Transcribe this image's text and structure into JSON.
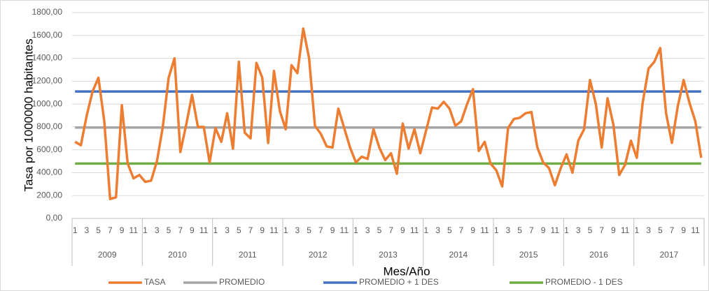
{
  "chart_data": {
    "type": "line",
    "ylabel": "Tasa por 1000000 habitantes",
    "xlabel": "Mes/Año",
    "categories": [
      "1",
      null,
      "3",
      null,
      "5",
      null,
      "7",
      null,
      "9",
      null,
      "11",
      null,
      "1",
      null,
      "3",
      null,
      "5",
      null,
      "7",
      null,
      "9",
      null,
      "11",
      null,
      "1",
      null,
      "3",
      null,
      "5",
      null,
      "7",
      null,
      "9",
      null,
      "11",
      null,
      "1",
      null,
      "3",
      null,
      "5",
      null,
      "7",
      null,
      "9",
      null,
      "11",
      null,
      "1",
      null,
      "3",
      null,
      "5",
      null,
      "7",
      null,
      "9",
      null,
      "11",
      null,
      "1",
      null,
      "3",
      null,
      "5",
      null,
      "7",
      null,
      "9",
      null,
      "11",
      null,
      "1",
      null,
      "3",
      null,
      "5",
      null,
      "7",
      null,
      "9",
      null,
      "11",
      null,
      "1",
      null,
      "3",
      null,
      "5",
      null,
      "7",
      null,
      "9",
      null,
      "11",
      null,
      "1",
      null,
      "3",
      null,
      "5",
      null,
      "7",
      null,
      "9",
      null,
      "11",
      null
    ],
    "years": [
      "2009",
      "2010",
      "2011",
      "2012",
      "2013",
      "2014",
      "2015",
      "2016",
      "2017"
    ],
    "ylim": [
      0,
      1800
    ],
    "yticks": [
      {
        "value": 0,
        "label": "0,00"
      },
      {
        "value": 200,
        "label": "200,00"
      },
      {
        "value": 400,
        "label": "400,00"
      },
      {
        "value": 600,
        "label": "600,00"
      },
      {
        "value": 800,
        "label": "800,00"
      },
      {
        "value": 1000,
        "label": "1000,00"
      },
      {
        "value": 1200,
        "label": "1200,00"
      },
      {
        "value": 1400,
        "label": "1400,00"
      },
      {
        "value": 1600,
        "label": "1600,00"
      },
      {
        "value": 1800,
        "label": "1800,00"
      }
    ],
    "grid": true,
    "legend": "bottom",
    "series": [
      {
        "name": "TASA",
        "color": "#ed7d31",
        "values": [
          670,
          640,
          900,
          1110,
          1230,
          850,
          170,
          185,
          990,
          480,
          350,
          380,
          320,
          330,
          500,
          800,
          1230,
          1400,
          580,
          820,
          1080,
          800,
          800,
          490,
          790,
          670,
          920,
          610,
          1370,
          750,
          700,
          1360,
          1230,
          660,
          1290,
          940,
          780,
          1340,
          1270,
          1660,
          1400,
          810,
          740,
          630,
          620,
          960,
          790,
          620,
          490,
          540,
          520,
          780,
          620,
          510,
          570,
          390,
          830,
          610,
          780,
          570,
          770,
          970,
          960,
          1020,
          960,
          810,
          850,
          1000,
          1130,
          590,
          670,
          480,
          420,
          280,
          790,
          870,
          880,
          920,
          930,
          620,
          490,
          440,
          290,
          440,
          560,
          400,
          680,
          780,
          1210,
          1000,
          620,
          1050,
          820,
          380,
          470,
          680,
          530,
          1010,
          1310,
          1370,
          1490,
          920,
          660,
          980,
          1210,
          1010,
          850,
          530
        ]
      },
      {
        "name": "PROMEDIO",
        "color": "#a5a5a5",
        "values": [
          795,
          795,
          795,
          795,
          795,
          795,
          795,
          795,
          795,
          795,
          795,
          795,
          795,
          795,
          795,
          795,
          795,
          795,
          795,
          795,
          795,
          795,
          795,
          795,
          795,
          795,
          795,
          795,
          795,
          795,
          795,
          795,
          795,
          795,
          795,
          795,
          795,
          795,
          795,
          795,
          795,
          795,
          795,
          795,
          795,
          795,
          795,
          795,
          795,
          795,
          795,
          795,
          795,
          795,
          795,
          795,
          795,
          795,
          795,
          795,
          795,
          795,
          795,
          795,
          795,
          795,
          795,
          795,
          795,
          795,
          795,
          795,
          795,
          795,
          795,
          795,
          795,
          795,
          795,
          795,
          795,
          795,
          795,
          795,
          795,
          795,
          795,
          795,
          795,
          795,
          795,
          795,
          795,
          795,
          795,
          795,
          795,
          795,
          795,
          795,
          795,
          795,
          795,
          795,
          795,
          795,
          795,
          795
        ]
      },
      {
        "name": "PROMEDIO + 1 DES",
        "color": "#4472c4",
        "values": [
          1110,
          1110,
          1110,
          1110,
          1110,
          1110,
          1110,
          1110,
          1110,
          1110,
          1110,
          1110,
          1110,
          1110,
          1110,
          1110,
          1110,
          1110,
          1110,
          1110,
          1110,
          1110,
          1110,
          1110,
          1110,
          1110,
          1110,
          1110,
          1110,
          1110,
          1110,
          1110,
          1110,
          1110,
          1110,
          1110,
          1110,
          1110,
          1110,
          1110,
          1110,
          1110,
          1110,
          1110,
          1110,
          1110,
          1110,
          1110,
          1110,
          1110,
          1110,
          1110,
          1110,
          1110,
          1110,
          1110,
          1110,
          1110,
          1110,
          1110,
          1110,
          1110,
          1110,
          1110,
          1110,
          1110,
          1110,
          1110,
          1110,
          1110,
          1110,
          1110,
          1110,
          1110,
          1110,
          1110,
          1110,
          1110,
          1110,
          1110,
          1110,
          1110,
          1110,
          1110,
          1110,
          1110,
          1110,
          1110,
          1110,
          1110,
          1110,
          1110,
          1110,
          1110,
          1110,
          1110,
          1110,
          1110,
          1110,
          1110,
          1110,
          1110,
          1110,
          1110,
          1110,
          1110,
          1110,
          1110
        ]
      },
      {
        "name": "PROMEDIO - 1 DES",
        "color": "#70ad47",
        "values": [
          480,
          480,
          480,
          480,
          480,
          480,
          480,
          480,
          480,
          480,
          480,
          480,
          480,
          480,
          480,
          480,
          480,
          480,
          480,
          480,
          480,
          480,
          480,
          480,
          480,
          480,
          480,
          480,
          480,
          480,
          480,
          480,
          480,
          480,
          480,
          480,
          480,
          480,
          480,
          480,
          480,
          480,
          480,
          480,
          480,
          480,
          480,
          480,
          480,
          480,
          480,
          480,
          480,
          480,
          480,
          480,
          480,
          480,
          480,
          480,
          480,
          480,
          480,
          480,
          480,
          480,
          480,
          480,
          480,
          480,
          480,
          480,
          480,
          480,
          480,
          480,
          480,
          480,
          480,
          480,
          480,
          480,
          480,
          480,
          480,
          480,
          480,
          480,
          480,
          480,
          480,
          480,
          480,
          480,
          480,
          480,
          480,
          480,
          480,
          480,
          480,
          480,
          480,
          480,
          480,
          480,
          480,
          480
        ]
      }
    ]
  }
}
